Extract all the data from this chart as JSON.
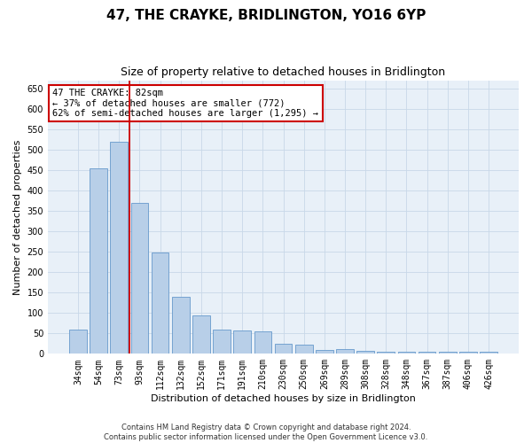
{
  "title": "47, THE CRAYKE, BRIDLINGTON, YO16 6YP",
  "subtitle": "Size of property relative to detached houses in Bridlington",
  "xlabel": "Distribution of detached houses by size in Bridlington",
  "ylabel": "Number of detached properties",
  "bar_labels": [
    "34sqm",
    "54sqm",
    "73sqm",
    "93sqm",
    "112sqm",
    "132sqm",
    "152sqm",
    "171sqm",
    "191sqm",
    "210sqm",
    "230sqm",
    "250sqm",
    "269sqm",
    "289sqm",
    "308sqm",
    "328sqm",
    "348sqm",
    "367sqm",
    "387sqm",
    "406sqm",
    "426sqm"
  ],
  "bar_values": [
    60,
    455,
    520,
    370,
    248,
    140,
    95,
    60,
    58,
    55,
    25,
    22,
    10,
    12,
    8,
    5,
    6,
    5,
    5,
    5,
    4
  ],
  "bar_color": "#b8cfe8",
  "bar_edge_color": "#6699cc",
  "ylim": [
    0,
    670
  ],
  "yticks": [
    0,
    50,
    100,
    150,
    200,
    250,
    300,
    350,
    400,
    450,
    500,
    550,
    600,
    650
  ],
  "red_line_index": 2,
  "annotation_text": "47 THE CRAYKE: 82sqm\n← 37% of detached houses are smaller (772)\n62% of semi-detached houses are larger (1,295) →",
  "annotation_box_color": "#ffffff",
  "annotation_box_edge": "#cc0000",
  "footer_line1": "Contains HM Land Registry data © Crown copyright and database right 2024.",
  "footer_line2": "Contains public sector information licensed under the Open Government Licence v3.0.",
  "background_color": "#ffffff",
  "plot_bg_color": "#e8f0f8",
  "grid_color": "#c8d8e8",
  "title_fontsize": 11,
  "subtitle_fontsize": 9,
  "xlabel_fontsize": 8,
  "ylabel_fontsize": 8,
  "tick_fontsize": 7,
  "annotation_fontsize": 7.5,
  "footer_fontsize": 6
}
